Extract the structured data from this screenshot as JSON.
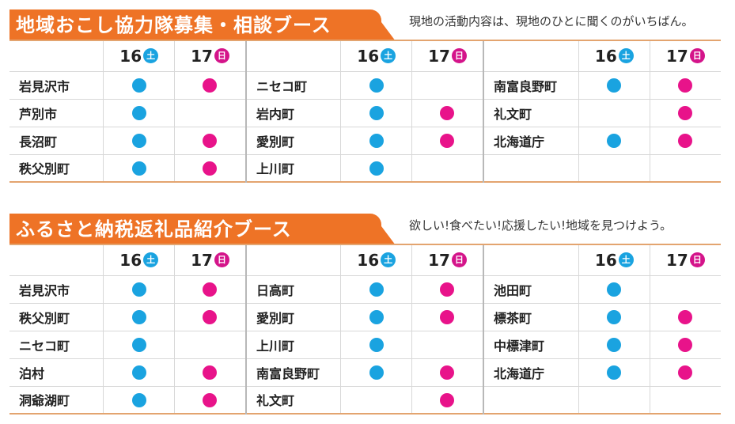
{
  "colors": {
    "accent": "#ee7326",
    "saturday": "#1aa3e0",
    "sunday": "#e8138a",
    "rule": "#e3a46f"
  },
  "days": {
    "sat": {
      "num": "16",
      "badge": "土"
    },
    "sun": {
      "num": "17",
      "badge": "日"
    }
  },
  "sections": [
    {
      "title": "地域おこし協力隊募集・相談ブース",
      "subtitle": "現地の活動内容は、現地のひとに聞くのがいちばん。",
      "columns": [
        {
          "rows": [
            {
              "name": "岩見沢市",
              "sat": true,
              "sun": true
            },
            {
              "name": "芦別市",
              "sat": true,
              "sun": false
            },
            {
              "name": "長沼町",
              "sat": true,
              "sun": true
            },
            {
              "name": "秩父別町",
              "sat": true,
              "sun": true
            }
          ]
        },
        {
          "rows": [
            {
              "name": "ニセコ町",
              "sat": true,
              "sun": false
            },
            {
              "name": "岩内町",
              "sat": true,
              "sun": true
            },
            {
              "name": "愛別町",
              "sat": true,
              "sun": true
            },
            {
              "name": "上川町",
              "sat": true,
              "sun": false
            }
          ]
        },
        {
          "rows": [
            {
              "name": "南富良野町",
              "sat": true,
              "sun": true
            },
            {
              "name": "礼文町",
              "sat": false,
              "sun": true
            },
            {
              "name": "北海道庁",
              "sat": true,
              "sun": true
            },
            {
              "name": "",
              "sat": false,
              "sun": false
            }
          ]
        }
      ]
    },
    {
      "title": "ふるさと納税返礼品紹介ブース",
      "subtitle": "欲しい!食べたい!応援したい!地域を見つけよう。",
      "columns": [
        {
          "rows": [
            {
              "name": "岩見沢市",
              "sat": true,
              "sun": true
            },
            {
              "name": "秩父別町",
              "sat": true,
              "sun": true
            },
            {
              "name": "ニセコ町",
              "sat": true,
              "sun": false
            },
            {
              "name": "泊村",
              "sat": true,
              "sun": true
            },
            {
              "name": "洞爺湖町",
              "sat": true,
              "sun": true
            }
          ]
        },
        {
          "rows": [
            {
              "name": "日高町",
              "sat": true,
              "sun": true
            },
            {
              "name": "愛別町",
              "sat": true,
              "sun": true
            },
            {
              "name": "上川町",
              "sat": true,
              "sun": false
            },
            {
              "name": "南富良野町",
              "sat": true,
              "sun": true
            },
            {
              "name": "礼文町",
              "sat": false,
              "sun": true
            }
          ]
        },
        {
          "rows": [
            {
              "name": "池田町",
              "sat": true,
              "sun": false
            },
            {
              "name": "標茶町",
              "sat": true,
              "sun": true
            },
            {
              "name": "中標津町",
              "sat": true,
              "sun": true
            },
            {
              "name": "北海道庁",
              "sat": true,
              "sun": true
            },
            {
              "name": "",
              "sat": false,
              "sun": false
            }
          ]
        }
      ]
    }
  ]
}
